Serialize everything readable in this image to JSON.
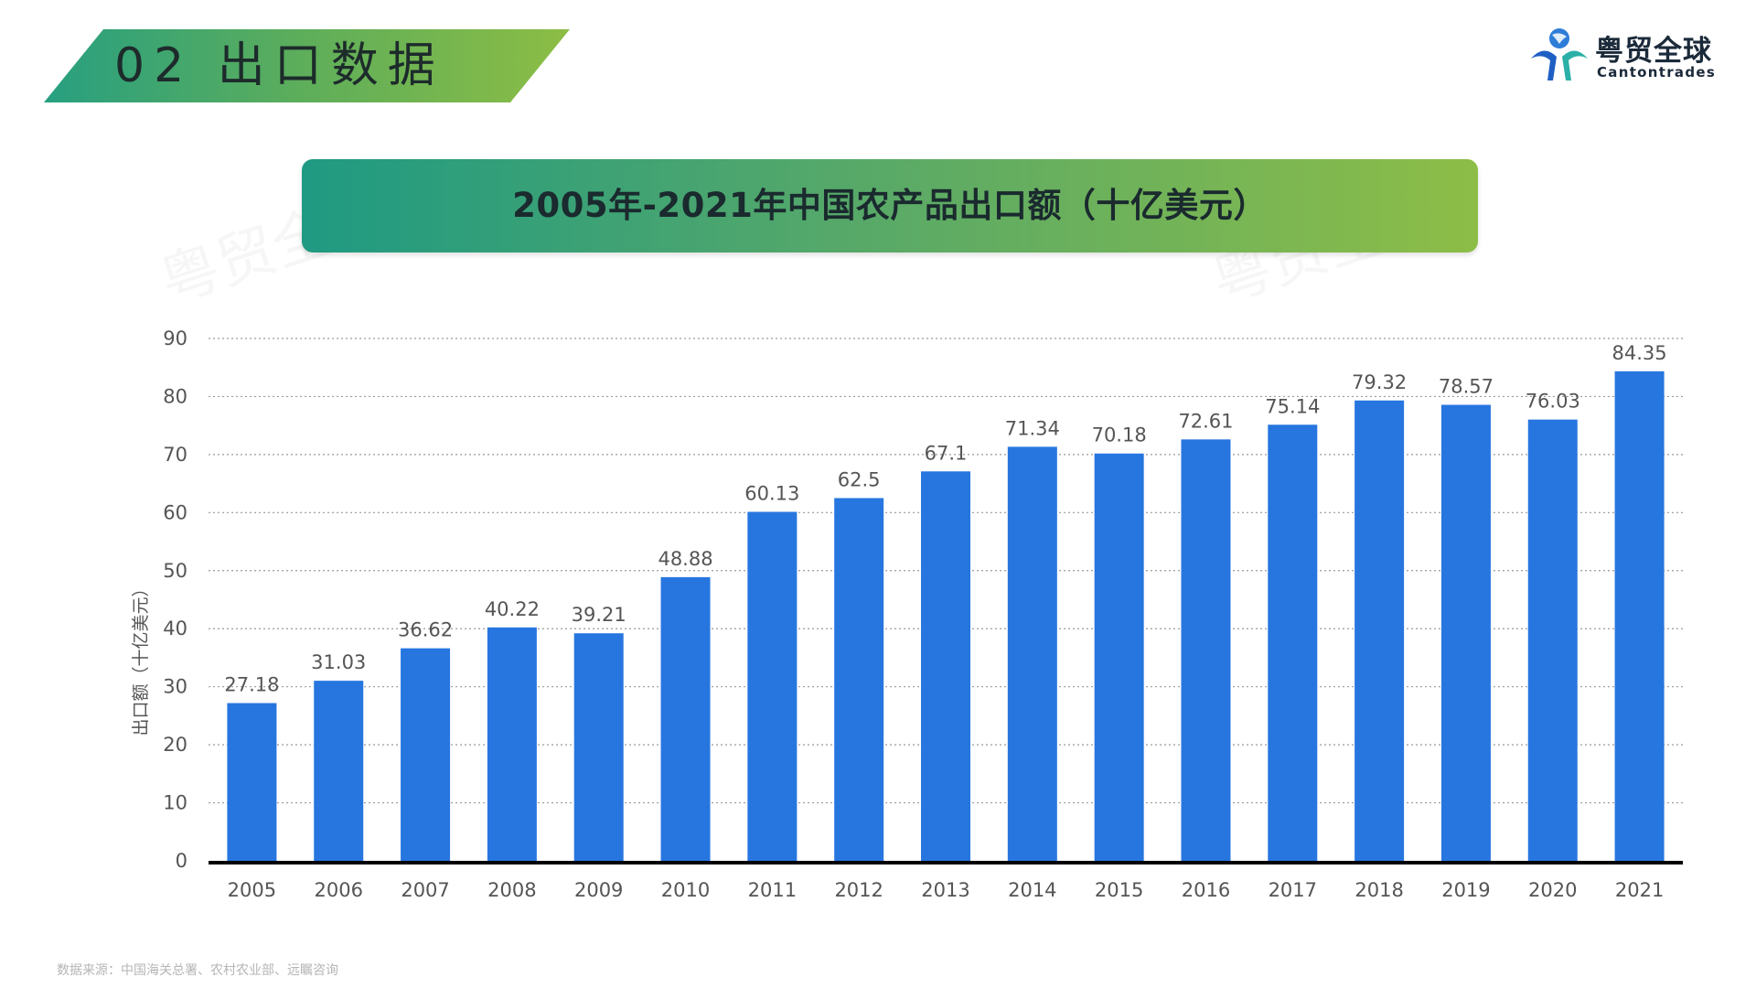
{
  "header": {
    "section_label": "02 出口数据"
  },
  "logo": {
    "name_cn": "粤贸全球",
    "name_en": "Cantontrades",
    "watermark": "粤贸全球"
  },
  "colors": {
    "bar": "#2776e0",
    "banner_start": "#1f9a82",
    "banner_end": "#8dbd47"
  },
  "source": "数据来源：中国海关总署、农村农业部、远瞩咨询",
  "chart_data": {
    "type": "bar",
    "title": "2005年-2021年中国农产品出口额（十亿美元）",
    "xlabel": "",
    "ylabel": "出口额（十亿美元）",
    "ylim": [
      0,
      90
    ],
    "yticks": [
      0,
      10,
      20,
      30,
      40,
      50,
      60,
      70,
      80,
      90
    ],
    "grid": true,
    "categories": [
      "2005",
      "2006",
      "2007",
      "2008",
      "2009",
      "2010",
      "2011",
      "2012",
      "2013",
      "2014",
      "2015",
      "2016",
      "2017",
      "2018",
      "2019",
      "2020",
      "2021"
    ],
    "values": [
      27.18,
      31.03,
      36.62,
      40.22,
      39.21,
      48.88,
      60.13,
      62.5,
      67.1,
      71.34,
      70.18,
      72.61,
      75.14,
      79.32,
      78.57,
      76.03,
      84.35
    ],
    "value_labels": [
      "27.18",
      "31.03",
      "36.62",
      "40.22",
      "39.21",
      "48.88",
      "60.13",
      "62.5",
      "67.1",
      "71.34",
      "70.18",
      "72.61",
      "75.14",
      "79.32",
      "78.57",
      "76.03",
      "84.35"
    ]
  }
}
